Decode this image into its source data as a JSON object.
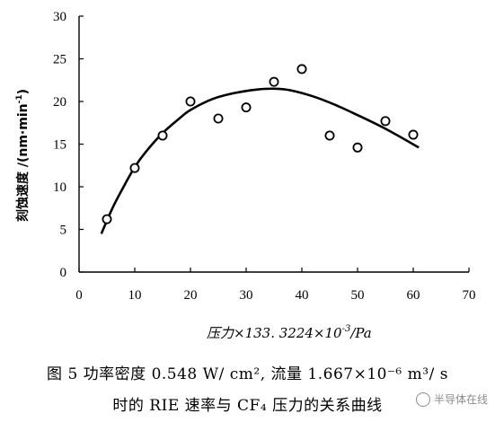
{
  "chart_data": {
    "type": "scatter",
    "xlabel": "压力×133. 3224×10",
    "xlabel_exp": "-3",
    "xlabel_unit": "/Pa",
    "ylabel": "刻蚀速度 /(nm·min",
    "ylabel_exp": "-1",
    "ylabel_end": ")",
    "xlim": [
      0,
      70
    ],
    "ylim": [
      0,
      30
    ],
    "x_ticks": [
      "0",
      "10",
      "20",
      "30",
      "40",
      "50",
      "60",
      "70"
    ],
    "y_ticks": [
      "0",
      "5",
      "10",
      "15",
      "20",
      "25",
      "30"
    ],
    "series": [
      {
        "marker": "open-circle",
        "x": [
          5,
          10,
          15,
          20,
          25,
          30,
          35,
          40,
          45,
          50,
          55,
          60
        ],
        "y": [
          6.2,
          12.2,
          16.0,
          20.0,
          18.0,
          19.3,
          22.3,
          23.8,
          16.0,
          14.6,
          17.7,
          16.1
        ]
      }
    ],
    "fit_curve": {
      "x": [
        4,
        6,
        8,
        10,
        12,
        15,
        18,
        20,
        24,
        28,
        32,
        35,
        38,
        42,
        46,
        50,
        55,
        61
      ],
      "y": [
        4.5,
        7.5,
        10.0,
        12.3,
        14.1,
        16.3,
        18.0,
        19.0,
        20.3,
        21.0,
        21.4,
        21.5,
        21.3,
        20.6,
        19.6,
        18.4,
        16.8,
        14.6
      ]
    },
    "grid": false
  },
  "caption": {
    "line1": "图 5   功率密度 0.548 W/ cm², 流量 1.667×10⁻⁶ m³/ s",
    "line2": "时的 RIE 速率与 CF₄ 压力的关系曲线"
  },
  "watermark": {
    "text": "半导体在线"
  }
}
